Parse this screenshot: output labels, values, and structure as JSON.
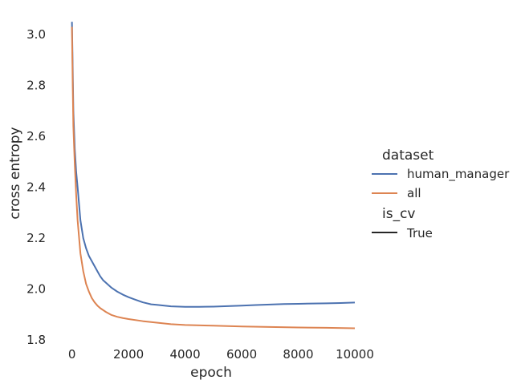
{
  "chart_data": {
    "type": "line",
    "title": "",
    "xlabel": "epoch",
    "ylabel": "cross entropy",
    "xlim": [
      -500,
      10000
    ],
    "ylim": [
      1.775,
      3.06
    ],
    "xticks": [
      0,
      2000,
      4000,
      6000,
      8000,
      10000
    ],
    "xtick_labels": [
      "0",
      "2000",
      "4000",
      "6000",
      "8000",
      "10000"
    ],
    "yticks": [
      1.8,
      2.0,
      2.2,
      2.4,
      2.6,
      2.8,
      3.0
    ],
    "ytick_labels": [
      "1.8",
      "2.0",
      "2.2",
      "2.4",
      "2.6",
      "2.8",
      "3.0"
    ],
    "grid": false,
    "legend_placement": "right",
    "legend": {
      "hue_title": "dataset",
      "style_title": "is_cv",
      "style_entries": [
        {
          "label": "True",
          "color": "#262626"
        }
      ]
    },
    "series": [
      {
        "name": "human_manager",
        "color": "#4c72b0",
        "x": [
          0,
          25,
          50,
          100,
          150,
          200,
          300,
          400,
          500,
          600,
          700,
          800,
          900,
          1000,
          1100,
          1200,
          1400,
          1600,
          1800,
          2000,
          2200,
          2500,
          2800,
          3000,
          3500,
          4000,
          4500,
          5000,
          5500,
          6000,
          6500,
          7000,
          7500,
          8000,
          8500,
          9000,
          9500,
          10000
        ],
        "y": [
          3.05,
          2.88,
          2.7,
          2.55,
          2.46,
          2.4,
          2.27,
          2.2,
          2.16,
          2.13,
          2.11,
          2.09,
          2.07,
          2.05,
          2.035,
          2.025,
          2.005,
          1.99,
          1.978,
          1.968,
          1.96,
          1.948,
          1.94,
          1.938,
          1.932,
          1.93,
          1.93,
          1.931,
          1.933,
          1.935,
          1.937,
          1.939,
          1.941,
          1.942,
          1.943,
          1.944,
          1.945,
          1.947
        ]
      },
      {
        "name": "all",
        "color": "#dd8452",
        "x": [
          0,
          25,
          50,
          100,
          150,
          200,
          300,
          400,
          500,
          600,
          700,
          800,
          900,
          1000,
          1200,
          1400,
          1600,
          1800,
          2000,
          2500,
          3000,
          3500,
          4000,
          5000,
          6000,
          7000,
          8000,
          9000,
          10000
        ],
        "y": [
          3.03,
          2.82,
          2.64,
          2.49,
          2.37,
          2.27,
          2.14,
          2.07,
          2.02,
          1.99,
          1.965,
          1.948,
          1.935,
          1.925,
          1.91,
          1.898,
          1.891,
          1.886,
          1.882,
          1.874,
          1.868,
          1.862,
          1.859,
          1.856,
          1.853,
          1.851,
          1.849,
          1.848,
          1.846
        ]
      }
    ]
  }
}
